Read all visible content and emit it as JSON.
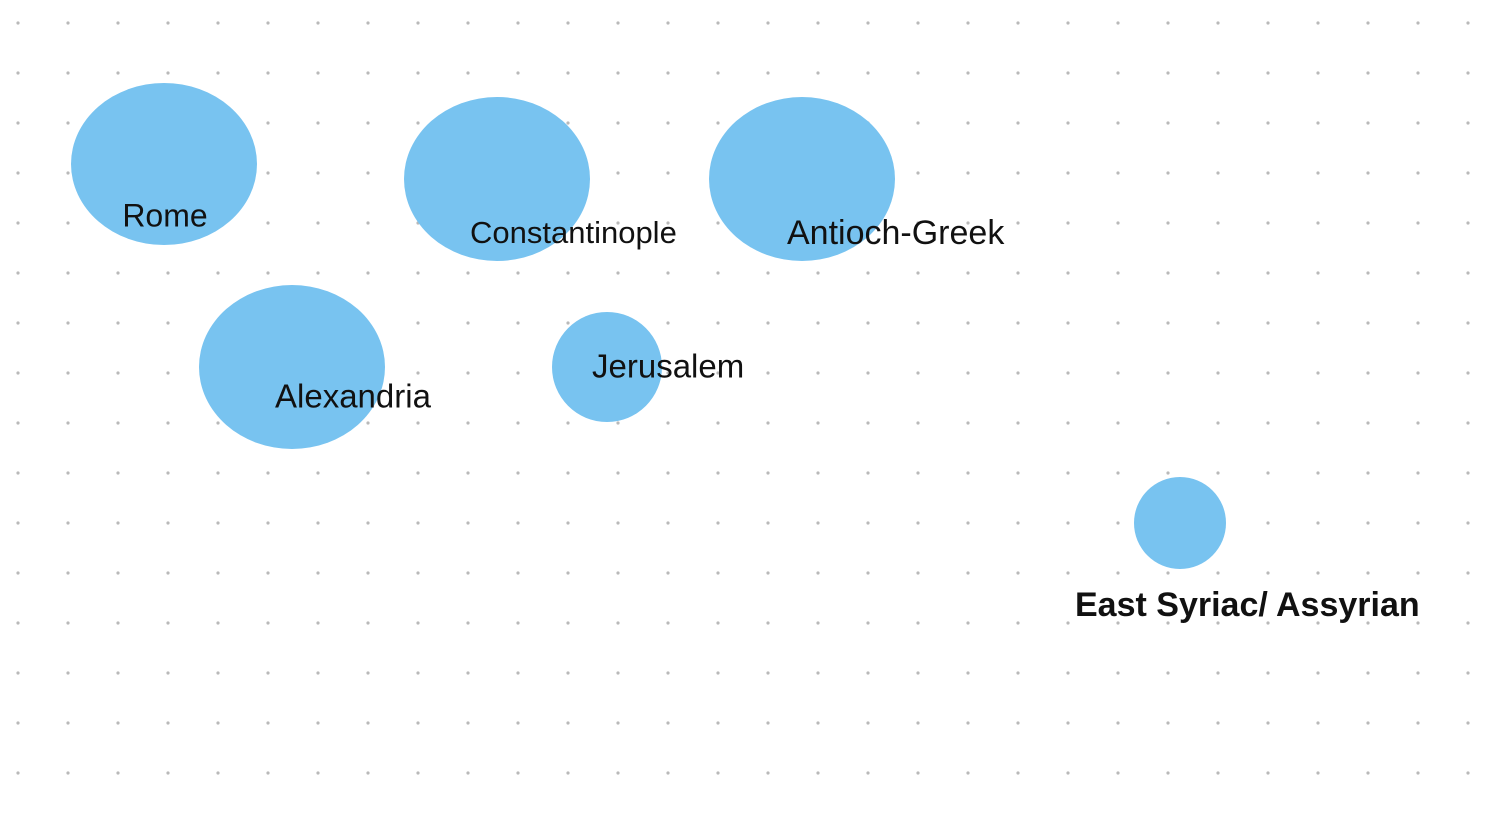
{
  "nodes": [
    {
      "label": "Rome"
    },
    {
      "label": "Constantinople"
    },
    {
      "label": "Antioch-Greek"
    },
    {
      "label": "Alexandria"
    },
    {
      "label": "Jerusalem"
    },
    {
      "label": "East Syriac/ Assyrian"
    }
  ]
}
